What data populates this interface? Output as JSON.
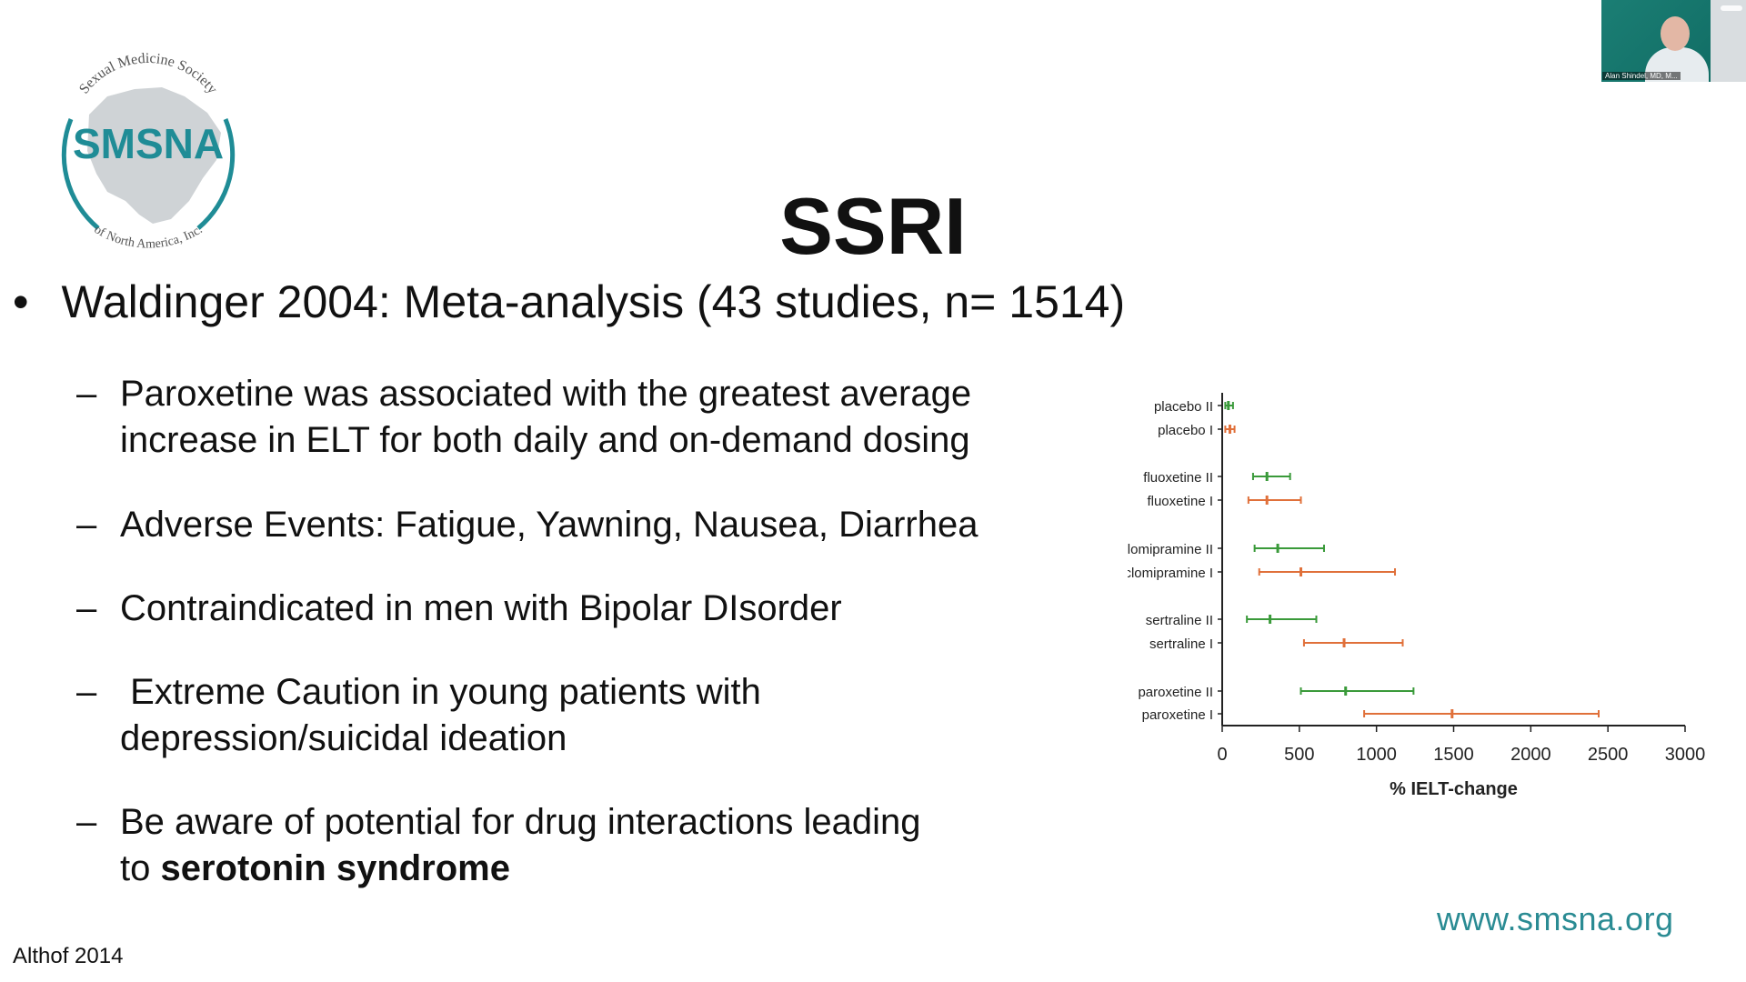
{
  "logo": {
    "org_arc_top": "Sexual Medicine Society",
    "acronym": "SMSNA",
    "org_arc_bottom": "of North America, Inc."
  },
  "video": {
    "participant_name": "Alan Shindel, MD, M..."
  },
  "slide": {
    "title": "SSRI",
    "main_bullet": "Waldinger 2004: Meta-analysis (43 studies, n= 1514)",
    "bullet_symbol": "•",
    "dash": "–",
    "sub_bullets": [
      {
        "lines": [
          "Paroxetine was associated with the greatest average",
          "increase in ELT for both daily and on-demand dosing"
        ]
      },
      {
        "lines": [
          "Adverse Events: Fatigue, Yawning, Nausea, Diarrhea"
        ]
      },
      {
        "lines": [
          "Contraindicated in men with Bipolar DIsorder"
        ]
      },
      {
        "lines": [
          " Extreme Caution in young patients with",
          "depression/suicidal ideation"
        ]
      },
      {
        "lines": [
          "Be aware of potential for drug interactions leading"
        ],
        "last_prefix": "to ",
        "last_bold": "serotonin syndrome"
      }
    ],
    "reference": "Althof 2014",
    "url": "www.smsna.org"
  },
  "chart_data": {
    "type": "forest",
    "xlabel": "% IELT-change",
    "xlim": [
      0,
      3000
    ],
    "xticks": [
      0,
      500,
      1000,
      1500,
      2000,
      2500,
      3000
    ],
    "colors": {
      "II": "#3a9a3a",
      "I": "#e0703a"
    },
    "rows": [
      {
        "label": "placebo II",
        "low": 20,
        "mid": 40,
        "high": 70,
        "series": "II"
      },
      {
        "label": "placebo I",
        "low": 20,
        "mid": 50,
        "high": 80,
        "series": "I"
      },
      {
        "label": "fluoxetine II",
        "low": 200,
        "mid": 290,
        "high": 440,
        "series": "II"
      },
      {
        "label": "fluoxetine I",
        "low": 170,
        "mid": 290,
        "high": 510,
        "series": "I"
      },
      {
        "label": "clomipramine II",
        "low": 210,
        "mid": 360,
        "high": 660,
        "series": "II"
      },
      {
        "label": "clomipramine I",
        "low": 240,
        "mid": 510,
        "high": 1120,
        "series": "I"
      },
      {
        "label": "sertraline II",
        "low": 160,
        "mid": 310,
        "high": 610,
        "series": "II"
      },
      {
        "label": "sertraline I",
        "low": 530,
        "mid": 790,
        "high": 1170,
        "series": "I"
      },
      {
        "label": "paroxetine II",
        "low": 510,
        "mid": 800,
        "high": 1240,
        "series": "II"
      },
      {
        "label": "paroxetine I",
        "low": 920,
        "mid": 1490,
        "high": 2440,
        "series": "I"
      }
    ]
  }
}
